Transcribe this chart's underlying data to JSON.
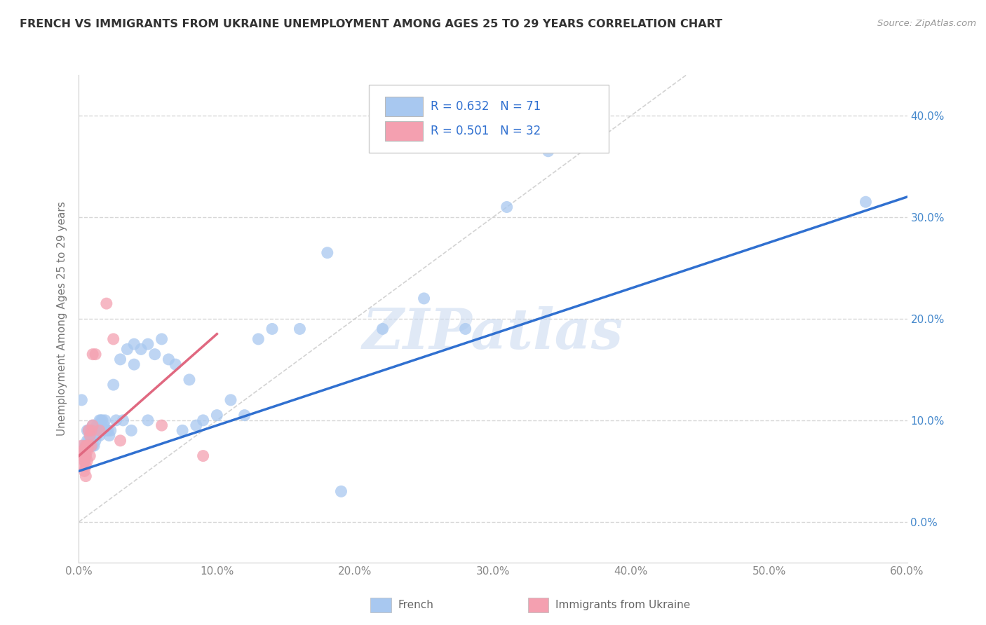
{
  "title": "FRENCH VS IMMIGRANTS FROM UKRAINE UNEMPLOYMENT AMONG AGES 25 TO 29 YEARS CORRELATION CHART",
  "source": "Source: ZipAtlas.com",
  "ylabel": "Unemployment Among Ages 25 to 29 years",
  "xlabel_bottom_french": "French",
  "xlabel_bottom_ukraine": "Immigrants from Ukraine",
  "xlim": [
    0.0,
    0.6
  ],
  "ylim": [
    -0.04,
    0.44
  ],
  "xticks": [
    0.0,
    0.1,
    0.2,
    0.3,
    0.4,
    0.5,
    0.6
  ],
  "yticks": [
    0.0,
    0.1,
    0.2,
    0.3,
    0.4
  ],
  "french_R": 0.632,
  "french_N": 71,
  "ukraine_R": 0.501,
  "ukraine_N": 32,
  "french_color": "#A8C8F0",
  "ukraine_color": "#F4A0B0",
  "french_line_color": "#3070D0",
  "ukraine_line_color": "#E06880",
  "diagonal_color": "#C8C8C8",
  "watermark": "ZIPatlas",
  "french_x": [
    0.002,
    0.003,
    0.003,
    0.004,
    0.004,
    0.005,
    0.005,
    0.005,
    0.006,
    0.006,
    0.007,
    0.007,
    0.008,
    0.008,
    0.008,
    0.009,
    0.009,
    0.01,
    0.01,
    0.01,
    0.011,
    0.011,
    0.012,
    0.012,
    0.013,
    0.013,
    0.014,
    0.015,
    0.015,
    0.016,
    0.017,
    0.018,
    0.019,
    0.02,
    0.021,
    0.022,
    0.023,
    0.025,
    0.027,
    0.03,
    0.032,
    0.035,
    0.038,
    0.04,
    0.04,
    0.045,
    0.05,
    0.05,
    0.055,
    0.06,
    0.065,
    0.07,
    0.075,
    0.08,
    0.085,
    0.09,
    0.1,
    0.11,
    0.12,
    0.13,
    0.14,
    0.16,
    0.18,
    0.19,
    0.22,
    0.25,
    0.28,
    0.31,
    0.34,
    0.37,
    0.57
  ],
  "french_y": [
    0.12,
    0.075,
    0.07,
    0.065,
    0.06,
    0.075,
    0.07,
    0.065,
    0.09,
    0.08,
    0.09,
    0.08,
    0.09,
    0.085,
    0.075,
    0.085,
    0.075,
    0.095,
    0.085,
    0.075,
    0.09,
    0.075,
    0.09,
    0.08,
    0.095,
    0.085,
    0.09,
    0.1,
    0.085,
    0.1,
    0.1,
    0.095,
    0.1,
    0.09,
    0.09,
    0.085,
    0.09,
    0.135,
    0.1,
    0.16,
    0.1,
    0.17,
    0.09,
    0.175,
    0.155,
    0.17,
    0.175,
    0.1,
    0.165,
    0.18,
    0.16,
    0.155,
    0.09,
    0.14,
    0.095,
    0.1,
    0.105,
    0.12,
    0.105,
    0.18,
    0.19,
    0.19,
    0.265,
    0.03,
    0.19,
    0.22,
    0.19,
    0.31,
    0.365,
    0.38,
    0.315
  ],
  "ukraine_x": [
    0.002,
    0.002,
    0.003,
    0.003,
    0.003,
    0.004,
    0.004,
    0.004,
    0.004,
    0.005,
    0.005,
    0.005,
    0.005,
    0.005,
    0.006,
    0.006,
    0.006,
    0.007,
    0.007,
    0.008,
    0.008,
    0.009,
    0.009,
    0.01,
    0.01,
    0.012,
    0.015,
    0.02,
    0.025,
    0.03,
    0.06,
    0.09
  ],
  "ukraine_y": [
    0.075,
    0.065,
    0.07,
    0.065,
    0.055,
    0.07,
    0.065,
    0.06,
    0.05,
    0.075,
    0.07,
    0.065,
    0.055,
    0.045,
    0.075,
    0.07,
    0.06,
    0.09,
    0.075,
    0.085,
    0.065,
    0.09,
    0.075,
    0.165,
    0.095,
    0.165,
    0.09,
    0.215,
    0.18,
    0.08,
    0.095,
    0.065
  ],
  "background_color": "#FFFFFF",
  "grid_color": "#CCCCCC",
  "french_line_x0": 0.0,
  "french_line_y0": 0.05,
  "french_line_x1": 0.6,
  "french_line_y1": 0.32,
  "ukraine_line_x0": 0.0,
  "ukraine_line_y0": 0.065,
  "ukraine_line_x1": 0.1,
  "ukraine_line_y1": 0.185
}
